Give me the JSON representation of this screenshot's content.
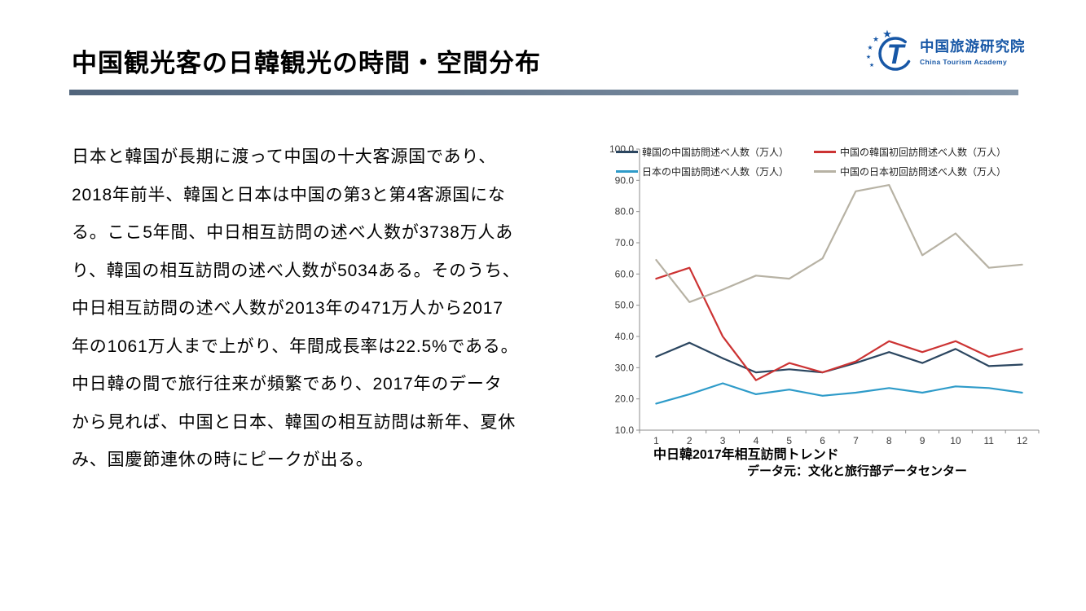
{
  "slide": {
    "title": "中国観光客の日韓観光の時間・空間分布",
    "colors": {
      "logo_blue": "#1757a6",
      "title_bar_left": "#51657c",
      "title_bar_right": "#8496a9"
    },
    "logo": {
      "org_cn": "中国旅游研究院",
      "org_en": "China Tourism Academy"
    },
    "body": {
      "lines": [
        "日本と韓国が長期に渡って中国の十大客源国であり、",
        "2018年前半、韓国と日本は中国の第3と第4客源国にな",
        "る。ここ5年間、中日相互訪問の述べ人数が3738万人あ",
        "り、韓国の相互訪問の述べ人数が5034ある。そのうち、",
        "中日相互訪問の述べ人数が2013年の471万人から2017",
        "年の1061万人まで上がり、年間成長率は22.5%である。",
        "中日韓の間で旅行往来が頻繁であり、2017年のデータ",
        "から見れば、中国と日本、韓国の相互訪問は新年、夏休",
        "み、国慶節連休の時にピークが出る。"
      ]
    },
    "chart": {
      "caption": "中日韓2017年相互訪問トレンド",
      "source": "データ元：文化と旅行部データセンター"
    }
  },
  "chart_data": {
    "type": "line",
    "title": "中日韓2017年相互訪問トレンド",
    "x": [
      1,
      2,
      3,
      4,
      5,
      6,
      7,
      8,
      9,
      10,
      11,
      12
    ],
    "xlabel": "",
    "ylabel": "",
    "ylim": [
      10,
      100
    ],
    "ytick_step": 10,
    "grid": false,
    "legend_position": "top",
    "series": [
      {
        "name": "韓国の中国訪問述べ人数（万人）",
        "color": "#2b4660",
        "values": [
          33.5,
          38,
          33,
          28.5,
          29.5,
          28.5,
          31.5,
          35,
          31.5,
          36,
          30.5,
          31
        ]
      },
      {
        "name": "中国の韓国初回訪問述べ人数（万人）",
        "color": "#cc3333",
        "values": [
          58.5,
          62,
          40,
          26,
          31.5,
          28.5,
          32,
          38.5,
          35,
          38.5,
          33.5,
          36
        ]
      },
      {
        "name": "日本の中国訪問述べ人数（万人）",
        "color": "#2e9bc9",
        "values": [
          18.5,
          21.5,
          25,
          21.5,
          23,
          21,
          22,
          23.5,
          22,
          24,
          23.5,
          22
        ]
      },
      {
        "name": "中国の日本初回訪問述べ人数（万人）",
        "color": "#b7b2a4",
        "values": [
          64.5,
          51,
          55,
          59.5,
          58.5,
          65,
          86.5,
          88.5,
          66,
          73,
          62,
          63
        ]
      }
    ]
  }
}
